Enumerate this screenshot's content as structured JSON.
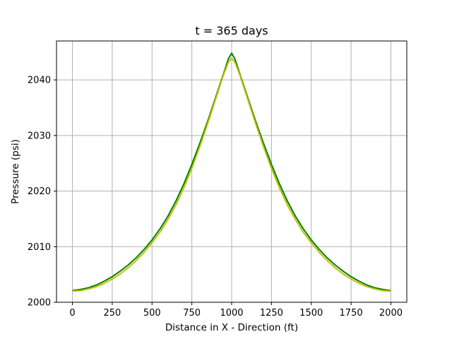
{
  "chart_data": {
    "type": "line",
    "title": "t = 365 days",
    "xlabel": "Distance in X - Direction (ft)",
    "ylabel": "Pressure (psi)",
    "xlim": [
      -100,
      2100
    ],
    "ylim": [
      2000,
      2047
    ],
    "xticks": [
      0,
      250,
      500,
      750,
      1000,
      1250,
      1500,
      1750,
      2000
    ],
    "yticks": [
      2000,
      2010,
      2020,
      2030,
      2040
    ],
    "grid": true,
    "series": [
      {
        "color": "#008000",
        "x": [
          0,
          50,
          100,
          150,
          200,
          250,
          300,
          350,
          400,
          450,
          500,
          550,
          600,
          650,
          700,
          750,
          800,
          850,
          900,
          950,
          980,
          1000,
          1020,
          1050,
          1100,
          1150,
          1200,
          1250,
          1300,
          1350,
          1400,
          1450,
          1500,
          1550,
          1600,
          1650,
          1700,
          1750,
          1800,
          1850,
          1900,
          1950,
          2000
        ],
        "y": [
          2002.1,
          2002.3,
          2002.6,
          2003.1,
          2003.8,
          2004.6,
          2005.6,
          2006.7,
          2008.0,
          2009.5,
          2011.2,
          2013.2,
          2015.5,
          2018.2,
          2021.3,
          2024.8,
          2028.6,
          2032.6,
          2036.9,
          2041.2,
          2043.8,
          2044.8,
          2043.8,
          2041.2,
          2036.9,
          2032.6,
          2028.6,
          2024.8,
          2021.3,
          2018.2,
          2015.5,
          2013.2,
          2011.2,
          2009.5,
          2008.0,
          2006.7,
          2005.6,
          2004.6,
          2003.8,
          2003.1,
          2002.6,
          2002.3,
          2002.1
        ]
      },
      {
        "color": "#bfbf00",
        "x": [
          0,
          50,
          100,
          150,
          200,
          250,
          300,
          350,
          400,
          450,
          500,
          550,
          600,
          650,
          700,
          750,
          800,
          850,
          900,
          950,
          980,
          1000,
          1020,
          1050,
          1100,
          1150,
          1200,
          1250,
          1300,
          1350,
          1400,
          1450,
          1500,
          1550,
          1600,
          1650,
          1700,
          1750,
          1800,
          1850,
          1900,
          1950,
          2000
        ],
        "y": [
          2002.0,
          2002.1,
          2002.4,
          2002.8,
          2003.4,
          2004.2,
          2005.1,
          2006.2,
          2007.5,
          2009.0,
          2010.7,
          2012.6,
          2014.9,
          2017.5,
          2020.6,
          2024.1,
          2028.0,
          2032.2,
          2036.6,
          2041.0,
          2043.2,
          2043.9,
          2043.2,
          2041.0,
          2036.6,
          2032.2,
          2028.0,
          2024.1,
          2020.6,
          2017.5,
          2014.9,
          2012.6,
          2010.7,
          2009.0,
          2007.5,
          2006.2,
          2005.1,
          2004.2,
          2003.4,
          2002.8,
          2002.4,
          2002.1,
          2002.0
        ]
      }
    ]
  }
}
